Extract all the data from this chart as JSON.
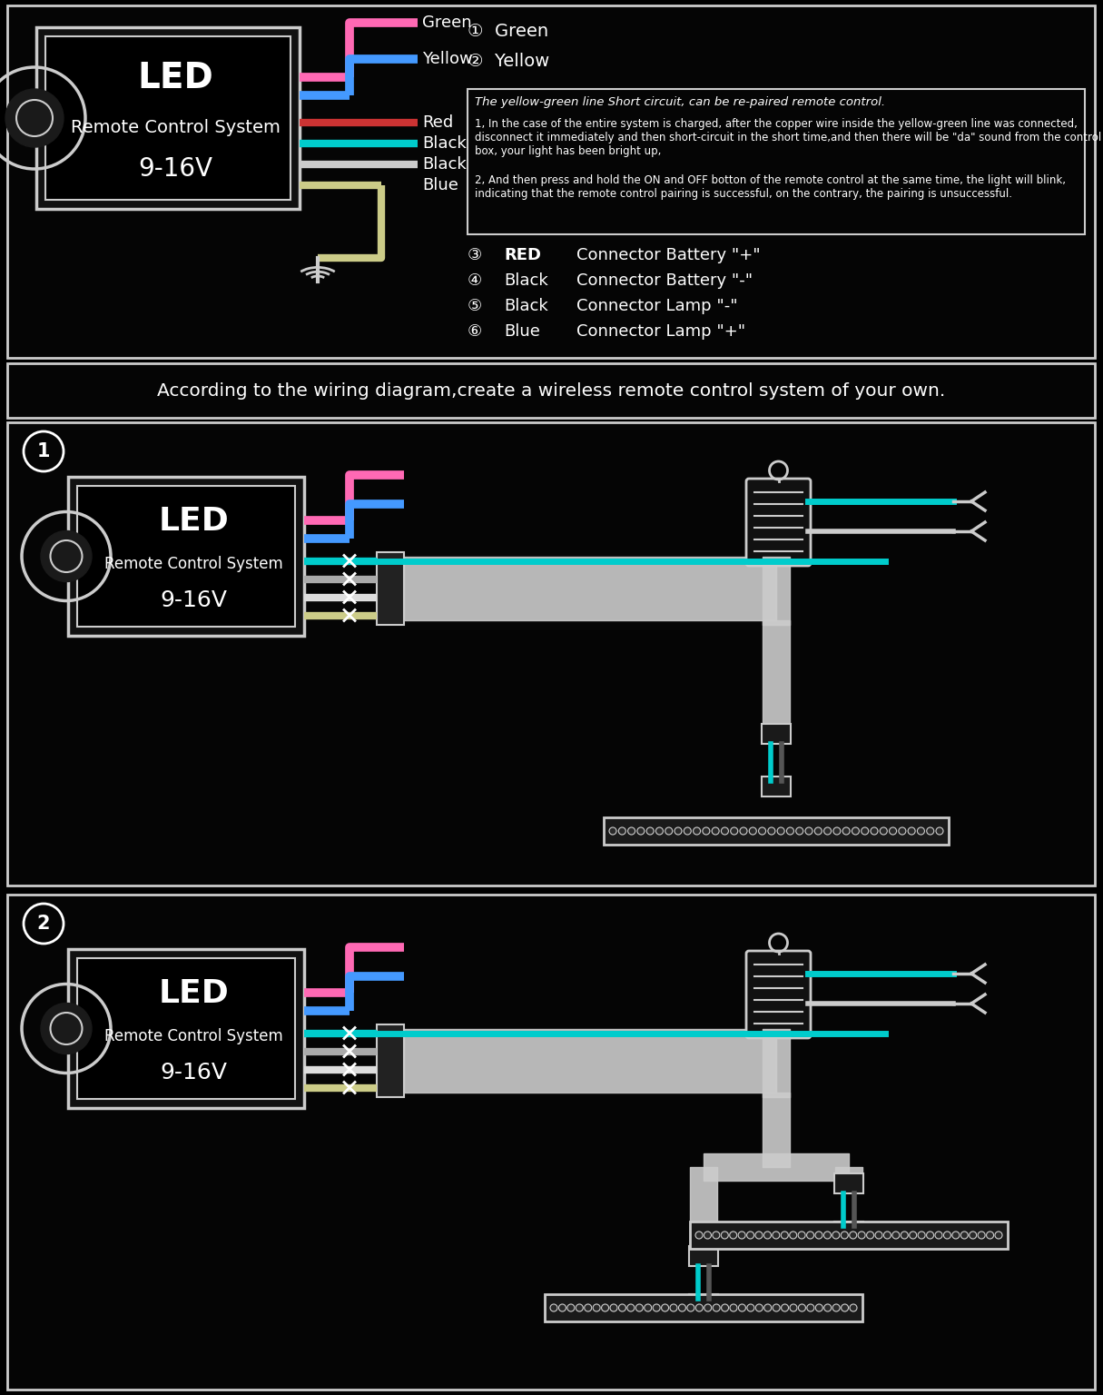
{
  "bg_color": "#000000",
  "white": "#ffffff",
  "light_gray": "#cccccc",
  "pink": "#ff69b4",
  "blue": "#4499ff",
  "cyan": "#00cccc",
  "yellow_wire": "#cccc88",
  "red_wire": "#cc3333",
  "green_wire": "#00cc00",
  "title_section": "According to the wiring diagram,create a wireless remote control system of your own.",
  "led_text_line1": "LED",
  "led_text_line2": "Remote Control System",
  "led_text_line3": "9-16V",
  "wire_labels": [
    "Green",
    "Yellow",
    "Red",
    "Black",
    "Black",
    "Blue"
  ],
  "info_title": "The yellow-green line Short circuit, can be re-paired remote control.",
  "info_p1": "1, In the case of the entire system is charged, after the copper wire inside the yellow-green line was connected, disconnect it immediately and then short-circuit in the short time,and then there will be \"da\" sound from the control box, your light has been bright up,",
  "info_p2": "2, And then press and hold the ON and OFF botton of the remote control at the same time, the light will blink, indicating that the remote control pairing is successful, on the contrary, the pairing is unsuccessful."
}
